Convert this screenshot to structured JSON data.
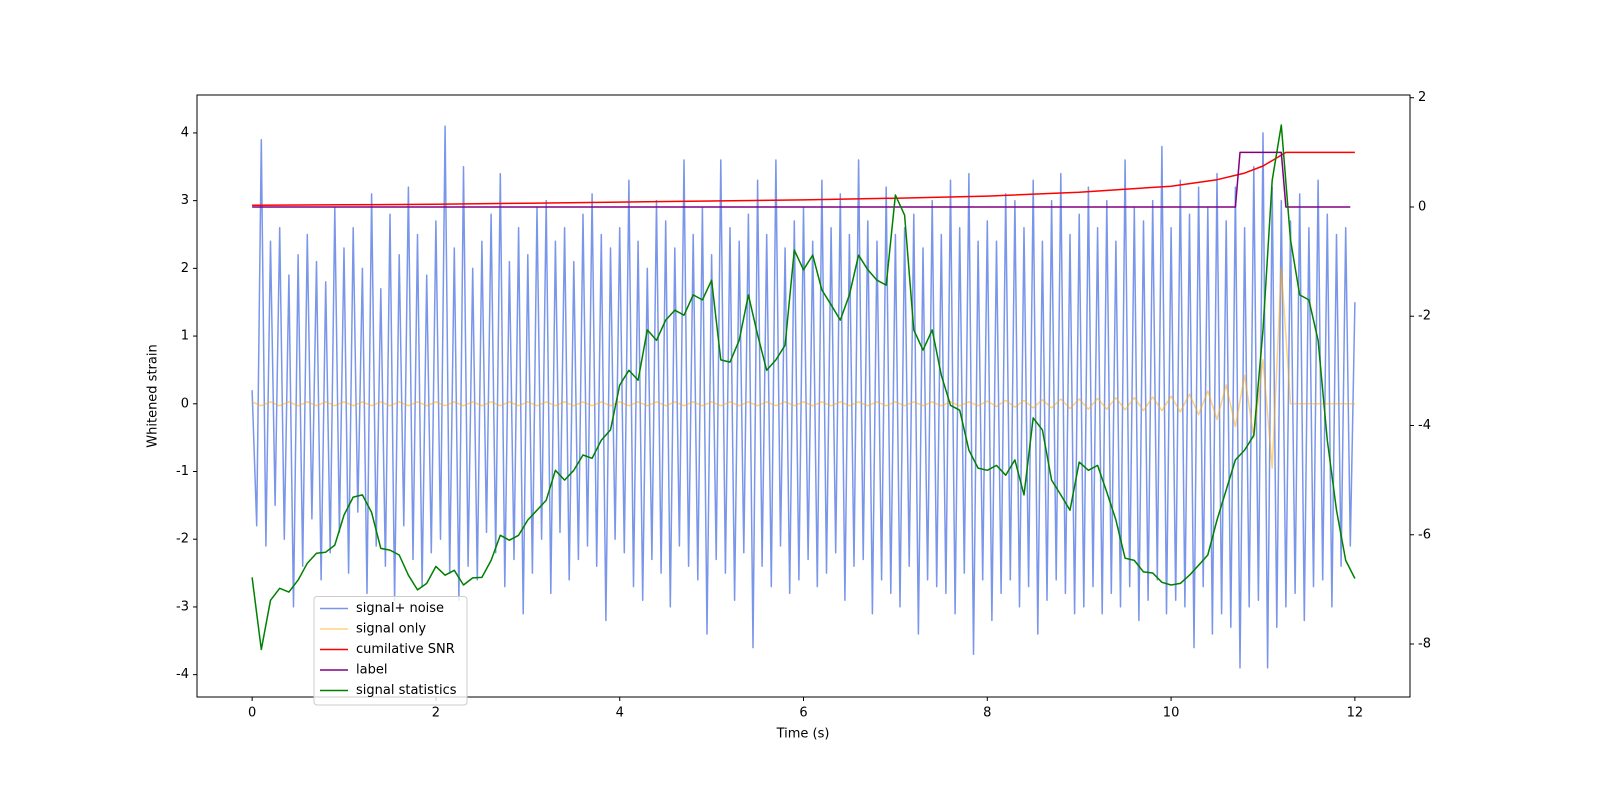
{
  "chart_data": {
    "type": "line",
    "xlabel": "Time (s)",
    "ylabel": "Whitened strain",
    "xlim": [
      -0.6,
      12.6
    ],
    "ylim": [
      -4.33,
      4.56
    ],
    "y2lim": [
      -8.97,
      2.05
    ],
    "xticks": [
      0,
      2,
      4,
      6,
      8,
      10,
      12
    ],
    "yticks": [
      -4,
      -3,
      -2,
      -1,
      0,
      1,
      2,
      3,
      4
    ],
    "y2ticks": [
      -8,
      -6,
      -4,
      -2,
      0,
      2
    ],
    "legend": "lower left",
    "x": [
      0,
      0.1,
      0.2,
      0.3,
      0.4,
      0.5,
      0.6,
      0.7,
      0.8,
      0.9,
      1,
      1.1,
      1.2,
      1.3,
      1.4,
      1.5,
      1.6,
      1.7,
      1.8,
      1.9,
      2,
      2.1,
      2.2,
      2.3,
      2.4,
      2.5,
      2.6,
      2.7,
      2.8,
      2.9,
      3,
      3.1,
      3.2,
      3.3,
      3.4,
      3.5,
      3.6,
      3.7,
      3.8,
      3.9,
      4,
      4.1,
      4.2,
      4.3,
      4.4,
      4.5,
      4.6,
      4.7,
      4.8,
      4.9,
      5,
      5.1,
      5.2,
      5.3,
      5.4,
      5.5,
      5.6,
      5.7,
      5.8,
      5.9,
      6,
      6.1,
      6.2,
      6.3,
      6.4,
      6.5,
      6.6,
      6.7,
      6.8,
      6.9,
      7,
      7.1,
      7.2,
      7.3,
      7.4,
      7.5,
      7.6,
      7.7,
      7.8,
      7.9,
      8,
      8.1,
      8.2,
      8.3,
      8.4,
      8.5,
      8.6,
      8.7,
      8.8,
      8.9,
      9,
      9.1,
      9.2,
      9.3,
      9.4,
      9.5,
      9.6,
      9.7,
      9.8,
      9.9,
      10,
      10.1,
      10.2,
      10.3,
      10.4,
      10.5,
      10.6,
      10.7,
      10.8,
      10.9,
      11,
      11.1,
      11.2,
      11.3,
      11.4,
      11.5,
      11.6,
      11.7,
      11.8,
      11.9,
      12
    ],
    "series": [
      {
        "name": "signal+ noise",
        "color": "royalblue",
        "alpha": 0.7,
        "x": [
          0,
          0.05,
          0.1,
          0.15,
          0.2,
          0.25,
          0.3,
          0.35,
          0.4,
          0.45,
          0.5,
          0.55,
          0.6,
          0.65,
          0.7,
          0.75,
          0.8,
          0.85,
          0.9,
          0.95,
          1,
          1.05,
          1.1,
          1.15,
          1.2,
          1.25,
          1.3,
          1.35,
          1.4,
          1.45,
          1.5,
          1.55,
          1.6,
          1.65,
          1.7,
          1.75,
          1.8,
          1.85,
          1.9,
          1.95,
          2,
          2.05,
          2.1,
          2.15,
          2.2,
          2.25,
          2.3,
          2.35,
          2.4,
          2.45,
          2.5,
          2.55,
          2.6,
          2.65,
          2.7,
          2.75,
          2.8,
          2.85,
          2.9,
          2.95,
          3,
          3.05,
          3.1,
          3.15,
          3.2,
          3.25,
          3.3,
          3.35,
          3.4,
          3.45,
          3.5,
          3.55,
          3.6,
          3.65,
          3.7,
          3.75,
          3.8,
          3.85,
          3.9,
          3.95,
          4,
          4.05,
          4.1,
          4.15,
          4.2,
          4.25,
          4.3,
          4.35,
          4.4,
          4.45,
          4.5,
          4.55,
          4.6,
          4.65,
          4.7,
          4.75,
          4.8,
          4.85,
          4.9,
          4.95,
          5,
          5.05,
          5.1,
          5.15,
          5.2,
          5.25,
          5.3,
          5.35,
          5.4,
          5.45,
          5.5,
          5.55,
          5.6,
          5.65,
          5.7,
          5.75,
          5.8,
          5.85,
          5.9,
          5.95,
          6,
          6.05,
          6.1,
          6.15,
          6.2,
          6.25,
          6.3,
          6.35,
          6.4,
          6.45,
          6.5,
          6.55,
          6.6,
          6.65,
          6.7,
          6.75,
          6.8,
          6.85,
          6.9,
          6.95,
          7,
          7.05,
          7.1,
          7.15,
          7.2,
          7.25,
          7.3,
          7.35,
          7.4,
          7.45,
          7.5,
          7.55,
          7.6,
          7.65,
          7.7,
          7.75,
          7.8,
          7.85,
          7.9,
          7.95,
          8,
          8.05,
          8.1,
          8.15,
          8.2,
          8.25,
          8.3,
          8.35,
          8.4,
          8.45,
          8.5,
          8.55,
          8.6,
          8.65,
          8.7,
          8.75,
          8.8,
          8.85,
          8.9,
          8.95,
          9,
          9.05,
          9.1,
          9.15,
          9.2,
          9.25,
          9.3,
          9.35,
          9.4,
          9.45,
          9.5,
          9.55,
          9.6,
          9.65,
          9.7,
          9.75,
          9.8,
          9.85,
          9.9,
          9.95,
          10,
          10.05,
          10.1,
          10.15,
          10.2,
          10.25,
          10.3,
          10.35,
          10.4,
          10.45,
          10.5,
          10.55,
          10.6,
          10.65,
          10.7,
          10.75,
          10.8,
          10.85,
          10.9,
          10.95,
          11,
          11.05,
          11.1,
          11.15,
          11.2,
          11.25,
          11.3,
          11.35,
          11.4,
          11.45,
          11.5,
          11.55,
          11.6,
          11.65,
          11.7,
          11.75,
          11.8,
          11.85,
          11.9,
          11.95,
          12
        ],
        "values": [
          0.2,
          -1.8,
          3.9,
          -2.1,
          2.4,
          -1.5,
          2.6,
          -2.0,
          1.9,
          -3.0,
          2.2,
          -2.4,
          2.5,
          -1.7,
          2.1,
          -2.6,
          1.8,
          -2.2,
          2.9,
          -1.9,
          2.3,
          -2.5,
          2.6,
          -1.6,
          2.0,
          -2.8,
          3.1,
          -2.1,
          1.7,
          -2.4,
          2.8,
          -2.9,
          2.2,
          -1.8,
          3.2,
          -2.3,
          2.5,
          -2.7,
          1.9,
          -2.2,
          2.7,
          -2.0,
          4.1,
          -2.5,
          2.3,
          -2.9,
          3.5,
          -2.4,
          2.0,
          -2.6,
          2.4,
          -1.9,
          2.8,
          -2.2,
          3.4,
          -2.7,
          2.1,
          -2.3,
          2.6,
          -3.1,
          2.2,
          -2.5,
          2.9,
          -2.0,
          3.0,
          -2.8,
          2.4,
          -1.9,
          2.6,
          -2.6,
          2.1,
          -2.3,
          2.8,
          -2.1,
          3.1,
          -2.4,
          2.5,
          -3.2,
          2.3,
          -2.0,
          2.6,
          -2.2,
          3.3,
          -2.7,
          2.4,
          -2.9,
          2.0,
          -2.3,
          3.0,
          -2.5,
          2.7,
          -3.0,
          2.3,
          -2.1,
          3.6,
          -2.4,
          2.5,
          -2.6,
          2.9,
          -3.4,
          2.2,
          -2.3,
          3.6,
          -2.5,
          2.6,
          -2.9,
          2.4,
          -2.2,
          2.8,
          -3.6,
          3.3,
          -2.4,
          2.5,
          -2.7,
          3.6,
          -2.1,
          2.3,
          -2.8,
          2.7,
          -2.6,
          2.9,
          -2.3,
          2.4,
          -2.7,
          3.3,
          -2.5,
          2.6,
          -2.2,
          3.1,
          -2.9,
          2.5,
          -2.4,
          3.6,
          -2.3,
          2.7,
          -3.1,
          2.4,
          -2.6,
          3.2,
          -2.8,
          2.5,
          -3.0,
          2.6,
          -2.4,
          2.8,
          -3.4,
          2.3,
          -2.6,
          3.0,
          -2.7,
          2.5,
          -2.8,
          3.3,
          -3.1,
          2.6,
          -2.5,
          3.4,
          -3.7,
          2.4,
          -2.6,
          2.7,
          -3.2,
          2.4,
          -2.8,
          3.1,
          -2.6,
          3.0,
          -3.0,
          2.6,
          -2.7,
          3.3,
          -3.4,
          2.4,
          -2.9,
          3.0,
          -2.6,
          3.4,
          -2.8,
          2.5,
          -3.1,
          2.8,
          -3.0,
          3.2,
          -2.7,
          2.6,
          -3.1,
          3.0,
          -2.8,
          2.4,
          -3.0,
          3.6,
          -2.7,
          2.9,
          -3.2,
          2.7,
          -2.9,
          3.0,
          -2.6,
          3.8,
          -3.1,
          2.6,
          -2.9,
          3.3,
          -3.0,
          2.8,
          -3.6,
          3.2,
          -2.7,
          2.9,
          -3.4,
          3.4,
          -3.1,
          2.7,
          -3.3,
          3.2,
          -3.9,
          2.6,
          -3.0,
          3.5,
          -2.9,
          4.0,
          -3.9,
          3.2,
          -3.3,
          3.0,
          -3.0,
          2.7,
          -2.8,
          3.1,
          -3.2,
          2.6,
          -2.7,
          3.3,
          -2.6,
          2.8,
          -3.0,
          2.5,
          -2.4,
          2.6,
          -2.1,
          1.5
        ]
      },
      {
        "name": "signal only",
        "color": "orange",
        "alpha": 0.5,
        "values": [
          0.03,
          -0.03,
          0.03,
          -0.03,
          0.03,
          -0.03,
          0.03,
          -0.03,
          0.03,
          -0.03,
          0.03,
          -0.03,
          0.03,
          -0.03,
          0.03,
          -0.03,
          0.03,
          -0.03,
          0.03,
          -0.03,
          0.03,
          -0.03,
          0.03,
          -0.03,
          0.03,
          -0.03,
          0.03,
          -0.03,
          0.03,
          -0.03,
          0.03,
          -0.03,
          0.03,
          -0.03,
          0.03,
          -0.03,
          0.03,
          -0.03,
          0.03,
          -0.03,
          0.03,
          -0.03,
          0.03,
          -0.03,
          0.03,
          -0.03,
          0.03,
          -0.03,
          0.03,
          -0.03,
          0.03,
          -0.03,
          0.03,
          -0.03,
          0.03,
          -0.03,
          0.03,
          -0.03,
          0.03,
          -0.03,
          0.03,
          -0.03,
          0.03,
          -0.03,
          0.03,
          -0.03,
          0.03,
          -0.03,
          0.03,
          -0.03,
          0.03,
          -0.03,
          0.03,
          -0.03,
          0.03,
          -0.03,
          0.03,
          -0.03,
          0.03,
          -0.03,
          0.04,
          -0.04,
          0.05,
          -0.05,
          0.05,
          -0.06,
          0.06,
          -0.06,
          0.07,
          -0.07,
          0.07,
          -0.08,
          0.08,
          -0.08,
          0.09,
          -0.09,
          0.09,
          -0.1,
          0.1,
          -0.1,
          0.11,
          -0.12,
          0.14,
          -0.16,
          0.19,
          -0.23,
          0.28,
          -0.34,
          0.42,
          -0.5,
          0.65,
          -0.95,
          2.0,
          0,
          0,
          0,
          0,
          0,
          0,
          0,
          0
        ]
      },
      {
        "name": "cumilative SNR",
        "color": "red",
        "axis": "y2",
        "x": [
          0,
          1,
          2,
          3,
          4,
          5,
          6,
          7,
          8,
          9,
          10,
          10.5,
          10.8,
          11,
          11.1,
          11.2,
          11.25,
          12
        ],
        "values": [
          0.03,
          0.04,
          0.05,
          0.07,
          0.09,
          0.11,
          0.13,
          0.16,
          0.2,
          0.27,
          0.38,
          0.5,
          0.62,
          0.75,
          0.85,
          0.95,
          1.0,
          1.0
        ]
      },
      {
        "name": "label",
        "color": "purple",
        "axis": "y2",
        "x": [
          0,
          10.7,
          10.75,
          11.2,
          11.25,
          11.95
        ],
        "values": [
          0,
          0,
          1,
          1,
          0,
          0
        ]
      },
      {
        "name": "signal statistics",
        "color": "green",
        "axis": "y2",
        "values": [
          -6.78,
          -8.1,
          -7.2,
          -6.98,
          -7.05,
          -6.83,
          -6.52,
          -6.34,
          -6.32,
          -6.19,
          -5.64,
          -5.31,
          -5.27,
          -5.59,
          -6.25,
          -6.28,
          -6.37,
          -6.74,
          -7.01,
          -6.89,
          -6.58,
          -6.74,
          -6.65,
          -6.92,
          -6.79,
          -6.78,
          -6.47,
          -6.01,
          -6.1,
          -6.01,
          -5.73,
          -5.55,
          -5.37,
          -4.82,
          -5.0,
          -4.82,
          -4.54,
          -4.6,
          -4.27,
          -4.08,
          -3.26,
          -2.99,
          -3.17,
          -2.25,
          -2.44,
          -2.07,
          -1.89,
          -1.98,
          -1.61,
          -1.7,
          -1.34,
          -2.8,
          -2.84,
          -2.44,
          -1.61,
          -2.34,
          -2.99,
          -2.8,
          -2.53,
          -0.79,
          -1.15,
          -0.88,
          -1.52,
          -1.79,
          -2.07,
          -1.61,
          -0.88,
          -1.15,
          -1.34,
          -1.43,
          0.22,
          -0.15,
          -2.25,
          -2.62,
          -2.25,
          -3.08,
          -3.63,
          -3.72,
          -4.45,
          -4.78,
          -4.82,
          -4.73,
          -4.91,
          -4.63,
          -5.27,
          -3.86,
          -4.08,
          -5.0,
          -5.27,
          -5.55,
          -4.67,
          -4.82,
          -4.73,
          -5.22,
          -5.73,
          -6.43,
          -6.47,
          -6.68,
          -6.7,
          -6.87,
          -6.92,
          -6.89,
          -6.74,
          -6.56,
          -6.37,
          -5.73,
          -5.18,
          -4.63,
          -4.45,
          -4.18,
          -2.25,
          0.49,
          1.5,
          -0.6,
          -1.61,
          -1.7,
          -2.44,
          -4.27,
          -5.55,
          -6.47,
          -6.8
        ]
      }
    ]
  }
}
